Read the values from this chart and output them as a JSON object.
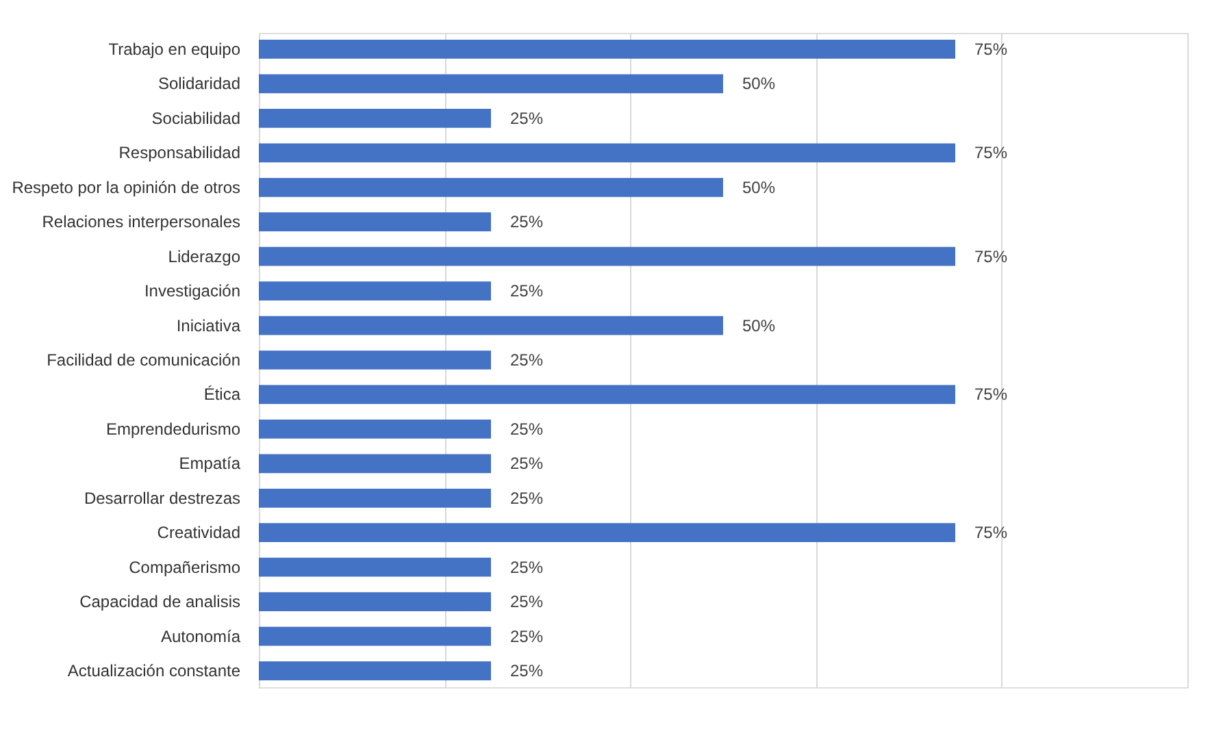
{
  "chart_data": {
    "type": "bar",
    "orientation": "horizontal",
    "categories": [
      "Trabajo en equipo",
      "Solidaridad",
      "Sociabilidad",
      "Responsabilidad",
      "Respeto por la opinión de otros",
      "Relaciones interpersonales",
      "Liderazgo",
      "Investigación",
      "Iniciativa",
      "Facilidad de comunicación",
      "Ética",
      "Emprendedurismo",
      "Empatía",
      "Desarrollar destrezas",
      "Creatividad",
      "Compañerismo",
      "Capacidad de analisis",
      "Autonomía",
      "Actualización constante"
    ],
    "values": [
      75,
      50,
      25,
      75,
      50,
      25,
      75,
      25,
      50,
      25,
      75,
      25,
      25,
      25,
      75,
      25,
      25,
      25,
      25
    ],
    "value_labels": [
      "75%",
      "50%",
      "25%",
      "75%",
      "50%",
      "25%",
      "75%",
      "25%",
      "50%",
      "25%",
      "75%",
      "25%",
      "25%",
      "25%",
      "75%",
      "25%",
      "25%",
      "25%",
      "25%"
    ],
    "color": "#4472c4",
    "xlim": [
      0,
      100
    ],
    "xticks": [
      {
        "value": 0,
        "label": null
      },
      {
        "value": 20,
        "label": null
      },
      {
        "value": 40,
        "label": null
      },
      {
        "value": 60,
        "label": null
      },
      {
        "value": 80,
        "label": null
      },
      {
        "value": 100,
        "label": null
      }
    ],
    "grid": "x",
    "tick_labels": "y"
  }
}
